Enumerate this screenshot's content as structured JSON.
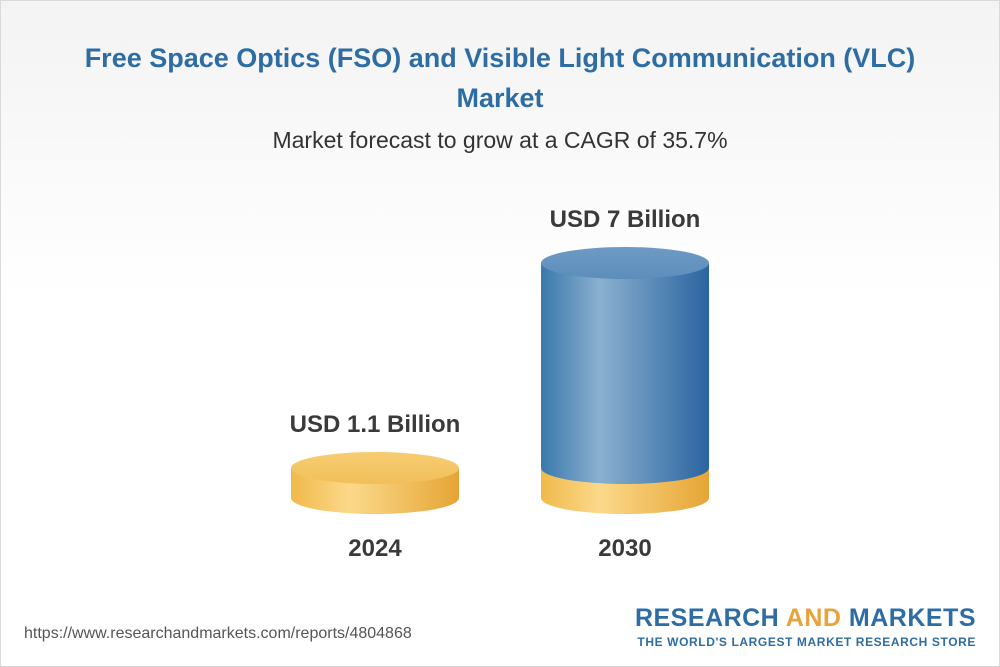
{
  "header": {
    "title": "Free Space Optics (FSO) and Visible Light Communication (VLC) Market",
    "subtitle": "Market forecast to grow at a CAGR of 35.7%"
  },
  "chart_data": {
    "type": "bar",
    "style": "3d-cylinder",
    "categories": [
      "2024",
      "2030"
    ],
    "values": [
      1.1,
      7
    ],
    "value_labels": [
      "USD 1.1 Billion",
      "USD 7 Billion"
    ],
    "unit": "USD Billion",
    "colors": {
      "base": "#f3c25f",
      "top": "#2e6da4"
    }
  },
  "footer": {
    "url": "https://www.researchandmarkets.com/reports/4804868",
    "brand_part1": "RESEARCH ",
    "brand_part2": "AND",
    "brand_part3": " MARKETS",
    "tagline": "THE WORLD'S LARGEST MARKET RESEARCH STORE"
  }
}
